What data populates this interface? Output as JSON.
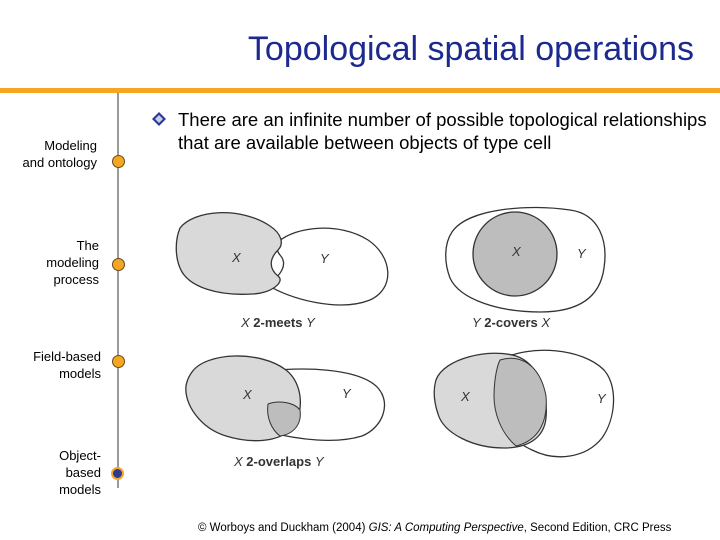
{
  "slide": {
    "title": "Topological spatial operations",
    "bullet": "There are an infinite number of possible topological relationships that are available between objects of type cell"
  },
  "nav": {
    "items": [
      {
        "label_lines": [
          "Modeling",
          "and ontology"
        ],
        "active": false
      },
      {
        "label_lines": [
          "The",
          "modeling",
          "process"
        ],
        "active": false
      },
      {
        "label_lines": [
          "Field-based",
          "models"
        ],
        "active": false
      },
      {
        "label_lines": [
          "Object-",
          "based",
          "models"
        ],
        "active": true
      }
    ]
  },
  "figure": {
    "region_x": "X",
    "region_y": "Y",
    "captions": {
      "meets": {
        "a": "X",
        "rel": "2-meets",
        "b": "Y"
      },
      "covers": {
        "a": "Y",
        "rel": "2-covers",
        "b": "X"
      },
      "overlaps": {
        "a": "X",
        "rel": "2-overlaps",
        "b": "Y"
      }
    }
  },
  "footer": {
    "symbol": "©",
    "pre": " Worboys and Duckham (2004) ",
    "book": "GIS: A Computing Perspective",
    "post": ", Second Edition, CRC Press"
  },
  "colors": {
    "title": "#1c2a8f",
    "accent_orange": "#f5a623",
    "shape_fill": "#d9d9d9",
    "shape_fill_dark": "#bdbdbd"
  }
}
